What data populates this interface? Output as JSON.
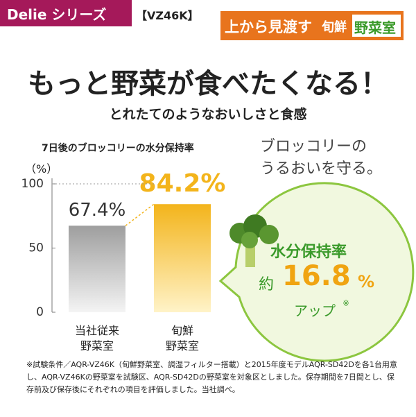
{
  "header": {
    "series": "Delie シリーズ",
    "model": "【VZ46K】",
    "badge": {
      "lead": "上から見渡す",
      "brand": "旬鮮",
      "room": "野菜室"
    }
  },
  "headline": "もっと野菜が食べたくなる！",
  "subheadline": "とれたてのようなおいしさと食感",
  "chart_data": {
    "type": "bar",
    "title": "7日後のブロッコリーの水分保持率",
    "y_unit": "（%）",
    "categories": [
      "当社従来\n野菜室",
      "旬鮮\n野菜室"
    ],
    "values": [
      67.4,
      84.2
    ],
    "value_labels": [
      "67.4%",
      "84.2%"
    ],
    "colors": [
      "#a9a9a9",
      "#f3b41b"
    ],
    "ylim": [
      0,
      100
    ],
    "yticks": [
      0,
      50,
      100
    ]
  },
  "caption": "ブロッコリーの\nうるおいを守る。",
  "bubble": {
    "label": "水分保持率",
    "prefix": "約",
    "value": 16.8,
    "unit": "%",
    "suffix": "アップ",
    "mark": "※"
  },
  "footnote": "※試験条件／AQR-VZ46K（旬鮮野菜室、調湿フィルター搭載）と2015年度モデルAQR-SD42Dを各1台用意し、AQR-VZ46Kの野菜室を試験区、AQR-SD42Dの野菜室を対象区としました。保存期間を7日間とし、保存前及び保存後にそれぞれの項目を評価しました。当社調べ。"
}
